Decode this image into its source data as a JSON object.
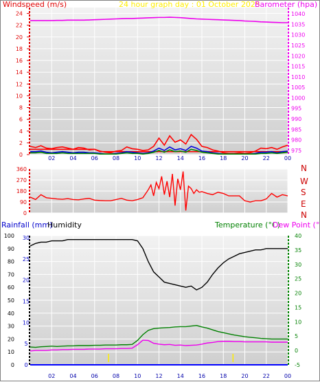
{
  "header": {
    "title_text": "24 hour graph day : 01 October 2025",
    "windspeed_axis_label": "Windspeed (m/s)",
    "barometer_axis_label": "Barometer (hpa)",
    "rainfall_axis_label": "Rainfall (mm)",
    "humidity_axis_label": "Humidity",
    "temperature_axis_label": "Temperature (°C)",
    "dewpoint_axis_label": "Dew Point (°C)"
  },
  "colors": {
    "windspeed_axis": "#e00000",
    "barometer_axis": "#ee00ee",
    "title": "#ffee00",
    "rainfall_axis": "#0000cc",
    "humidity_axis": "#000000",
    "temperature_axis": "#008000",
    "dewpoint_axis": "#ee00ee",
    "plot_background": "#dcdcdc",
    "gridline": "#ffffff"
  },
  "x_tick_labels": [
    "02",
    "04",
    "06",
    "08",
    "10",
    "12",
    "14",
    "16",
    "18",
    "20",
    "22",
    "00"
  ],
  "compass_labels": [
    "N",
    "W",
    "S",
    "E",
    "N"
  ],
  "chart_data": [
    {
      "type": "line",
      "panel": "wind_and_pressure",
      "x": [
        0,
        0.5,
        1,
        1.5,
        2,
        2.5,
        3,
        3.5,
        4,
        4.5,
        5,
        5.5,
        6,
        6.5,
        7,
        7.5,
        8,
        8.5,
        9,
        9.5,
        10,
        10.5,
        11,
        11.5,
        12,
        12.5,
        13,
        13.5,
        14,
        14.5,
        15,
        15.5,
        16,
        16.5,
        17,
        17.5,
        18,
        18.5,
        19,
        19.5,
        20,
        20.5,
        21,
        21.5,
        22,
        22.5,
        23,
        23.5,
        24
      ],
      "x_tick_labels": [
        "02",
        "04",
        "06",
        "08",
        "10",
        "12",
        "14",
        "16",
        "18",
        "20",
        "22",
        "00"
      ],
      "y_left_ticks": [
        0,
        2,
        4,
        6,
        8,
        10,
        12,
        14,
        16,
        18,
        20,
        22,
        24
      ],
      "y_right_ticks": [
        975,
        980,
        985,
        990,
        995,
        1000,
        1005,
        1010,
        1015,
        1020,
        1025,
        1030,
        1035,
        1040
      ],
      "ylim_left": [
        0,
        25
      ],
      "ylim_right": [
        973,
        1043
      ],
      "series": [
        {
          "axis": "right",
          "color": "#ee00ee",
          "values": [
            1036.8,
            1036.8,
            1036.8,
            1036.8,
            1036.8,
            1036.9,
            1036.9,
            1037,
            1037,
            1037,
            1037,
            1037.1,
            1037.2,
            1037.3,
            1037.4,
            1037.5,
            1037.6,
            1037.7,
            1037.8,
            1037.8,
            1037.9,
            1038,
            1038.1,
            1038.2,
            1038.3,
            1038.3,
            1038.4,
            1038.3,
            1038.2,
            1038,
            1037.8,
            1037.6,
            1037.5,
            1037.4,
            1037.3,
            1037.2,
            1037.1,
            1037,
            1036.9,
            1036.8,
            1036.6,
            1036.5,
            1036.4,
            1036.2,
            1036.1,
            1036,
            1035.9,
            1035.8,
            1035.8
          ]
        },
        {
          "axis": "left",
          "color": "#ff0000",
          "label": "gust",
          "values": [
            1.4,
            1.2,
            1.5,
            1.1,
            1,
            1.2,
            1.3,
            1.1,
            0.9,
            1.2,
            1.1,
            0.8,
            0.9,
            0.6,
            0.4,
            0.3,
            0.6,
            0.7,
            1.3,
            1,
            0.9,
            0.7,
            0.8,
            1.4,
            2.8,
            1.6,
            3.2,
            2.1,
            2.5,
            1.8,
            3.4,
            2.6,
            1.4,
            1.2,
            0.8,
            0.6,
            0.3,
            0.2,
            0.2,
            0.3,
            0.2,
            0.3,
            0.6,
            1.1,
            1,
            1.2,
            0.9,
            1.3,
            1.6
          ]
        },
        {
          "axis": "left",
          "color": "#ff0000",
          "label": "gust_baseline",
          "values": [
            0.9,
            0.9,
            0.9,
            0.9,
            0.9,
            0.9,
            0.9,
            0.9,
            0.9,
            0.9,
            0.9,
            0.9,
            0.9,
            0.5,
            0.5,
            0.5,
            0.5,
            0.5,
            0.5,
            0.5,
            0.5,
            0.5,
            0.5,
            0.5,
            0.5,
            0.5,
            0.5,
            0.5,
            0.5,
            0.5,
            0.5,
            0.5,
            0.5,
            0.5,
            0.5,
            0.5,
            0.5,
            0.5,
            0.5,
            0.5,
            0.5,
            0.5,
            0.5,
            0.5,
            0.5,
            0.5,
            0.5,
            0.5,
            0.5
          ]
        },
        {
          "axis": "left",
          "color": "#0000dd",
          "label": "average",
          "values": [
            0.5,
            0.5,
            0.6,
            0.4,
            0.3,
            0.4,
            0.5,
            0.4,
            0.3,
            0.4,
            0.4,
            0.3,
            0.3,
            0.2,
            0.1,
            0.1,
            0.2,
            0.3,
            0.5,
            0.4,
            0.3,
            0.2,
            0.3,
            0.6,
            1.1,
            0.7,
            1.3,
            0.8,
            1,
            0.7,
            1.4,
            1.1,
            0.6,
            0.5,
            0.3,
            0.2,
            0.1,
            0.1,
            0.1,
            0.1,
            0.1,
            0.1,
            0.2,
            0.4,
            0.4,
            0.5,
            0.3,
            0.5,
            0.6
          ]
        },
        {
          "axis": "left",
          "color": "#008000",
          "label": "speed",
          "values": [
            0.3,
            0.3,
            0.4,
            0.2,
            0.2,
            0.2,
            0.3,
            0.2,
            0.2,
            0.2,
            0.2,
            0.2,
            0.2,
            0.1,
            0.1,
            0.1,
            0.1,
            0.2,
            0.3,
            0.2,
            0.2,
            0.1,
            0.2,
            0.4,
            0.7,
            0.4,
            0.8,
            0.5,
            0.6,
            0.4,
            0.9,
            0.7,
            0.4,
            0.3,
            0.2,
            0.1,
            0.1,
            0.1,
            0.1,
            0.1,
            0.1,
            0.1,
            0.1,
            0.2,
            0.2,
            0.3,
            0.2,
            0.3,
            0.4
          ]
        }
      ]
    },
    {
      "type": "line",
      "panel": "wind_direction",
      "x": [
        0,
        0.5,
        1,
        1.5,
        2,
        2.5,
        3,
        3.5,
        4,
        4.5,
        5,
        5.5,
        6,
        6.5,
        7,
        7.5,
        8,
        8.5,
        9,
        9.5,
        10,
        10.5,
        11,
        11.25,
        11.5,
        11.75,
        12,
        12.25,
        12.5,
        12.75,
        13,
        13.25,
        13.5,
        13.75,
        14,
        14.25,
        14.5,
        14.75,
        15,
        15.25,
        15.5,
        15.75,
        16,
        16.5,
        17,
        17.5,
        18,
        18.5,
        19,
        19.5,
        20,
        20.5,
        21,
        21.5,
        22,
        22.5,
        23,
        23.5,
        24
      ],
      "y_left_ticks": [
        0,
        90,
        180,
        270,
        360
      ],
      "ylim": [
        0,
        360
      ],
      "series": [
        {
          "color": "#ff0000",
          "values": [
            130,
            110,
            150,
            125,
            120,
            115,
            112,
            118,
            110,
            108,
            115,
            120,
            105,
            102,
            100,
            100,
            110,
            120,
            105,
            100,
            110,
            125,
            190,
            230,
            140,
            250,
            200,
            300,
            150,
            260,
            130,
            320,
            60,
            280,
            190,
            340,
            20,
            220,
            200,
            160,
            190,
            170,
            175,
            160,
            150,
            170,
            160,
            140,
            140,
            140,
            100,
            90,
            100,
            100,
            115,
            160,
            130,
            150,
            140
          ]
        }
      ]
    },
    {
      "type": "line",
      "panel": "temperature_humidity_rain",
      "x": [
        0,
        0.5,
        1,
        1.5,
        2,
        2.5,
        3,
        3.5,
        4,
        4.5,
        5,
        5.5,
        6,
        6.5,
        7,
        7.5,
        8,
        8.5,
        9,
        9.5,
        10,
        10.5,
        11,
        11.5,
        12,
        12.5,
        13,
        13.5,
        14,
        14.5,
        15,
        15.5,
        16,
        16.5,
        17,
        17.5,
        18,
        18.5,
        19,
        19.5,
        20,
        20.5,
        21,
        21.5,
        22,
        22.5,
        23,
        23.5,
        24
      ],
      "y_left_ticks": [
        0,
        10,
        20,
        30,
        40,
        50,
        60,
        70,
        80,
        90,
        100
      ],
      "y_rain_ticks": [
        0,
        5,
        10,
        15,
        20,
        25,
        30
      ],
      "y_right_ticks": [
        -5,
        0,
        5,
        10,
        15,
        20,
        25,
        30,
        35,
        40
      ],
      "ylim_left": [
        0,
        100
      ],
      "ylim_right": [
        -5,
        40
      ],
      "series": [
        {
          "name": "Humidity",
          "color": "#000000",
          "values": [
            92,
            94,
            95,
            95,
            96,
            96,
            96,
            97,
            97,
            97,
            97,
            97,
            97,
            97,
            97,
            97,
            97,
            97,
            97,
            97,
            96,
            90,
            80,
            72,
            68,
            64,
            63,
            62,
            61,
            60,
            61,
            58,
            60,
            64,
            70,
            75,
            79,
            82,
            84,
            86,
            87,
            88,
            89,
            89,
            90,
            90,
            90,
            90,
            90
          ]
        },
        {
          "name": "Temperature (°C)",
          "color": "#008000",
          "values": [
            1.2,
            1.1,
            1.3,
            1.4,
            1.5,
            1.4,
            1.5,
            1.6,
            1.6,
            1.7,
            1.7,
            1.7,
            1.8,
            1.8,
            1.9,
            1.9,
            1.9,
            2,
            2,
            2.1,
            3.5,
            5.5,
            7,
            7.6,
            7.8,
            7.9,
            8,
            8.2,
            8.3,
            8.3,
            8.5,
            8.7,
            8.2,
            7.8,
            7.2,
            6.6,
            6.2,
            5.8,
            5.4,
            5.1,
            4.8,
            4.6,
            4.4,
            4.2,
            4.1,
            4,
            4,
            4,
            4
          ]
        },
        {
          "name": "Dew Point (°C)",
          "color": "#ee00ee",
          "values": [
            -0.2,
            0,
            0,
            0,
            0.2,
            0.2,
            0.3,
            0.3,
            0.4,
            0.4,
            0.4,
            0.5,
            0.5,
            0.5,
            0.6,
            0.6,
            0.6,
            0.7,
            0.7,
            0.8,
            2,
            3.6,
            3.5,
            2.5,
            2.2,
            2,
            2.1,
            1.8,
            1.9,
            1.7,
            1.8,
            1.9,
            2.2,
            2.6,
            2.8,
            3.1,
            3.2,
            3.2,
            3.1,
            3.1,
            3,
            3,
            3,
            3,
            3,
            2.9,
            2.9,
            2.9,
            2.9
          ]
        },
        {
          "name": "Rainfall (mm)",
          "color": "#0000ff",
          "values": [
            0,
            0,
            0,
            0,
            0,
            0,
            0,
            0,
            0,
            0,
            0,
            0,
            0,
            0,
            0,
            0,
            0,
            0,
            0,
            0,
            0,
            0,
            0,
            0,
            0,
            0,
            0,
            0,
            0,
            0,
            0,
            0,
            0,
            0,
            0,
            0,
            0,
            0,
            0,
            0,
            0,
            0,
            0,
            0,
            0,
            0,
            0,
            0,
            0
          ]
        }
      ]
    }
  ]
}
